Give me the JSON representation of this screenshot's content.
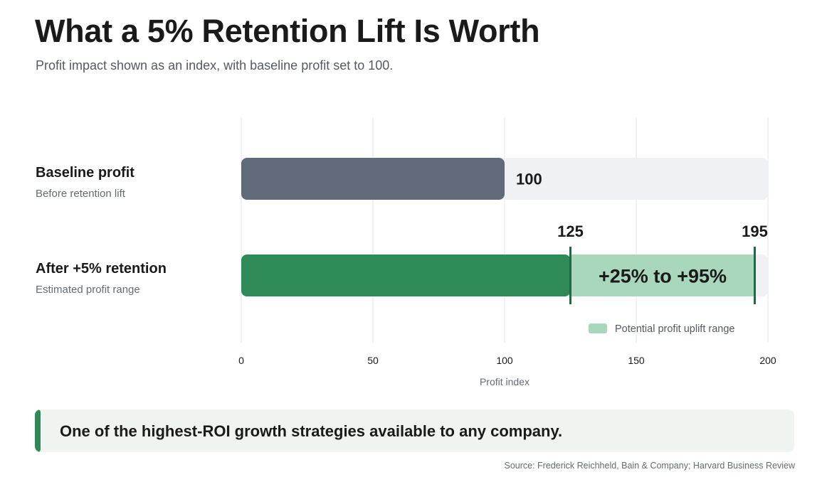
{
  "title": "What a 5% Retention Lift Is Worth",
  "subtitle": "Profit impact shown as an index, with baseline profit set to 100.",
  "rows": [
    {
      "name": "Baseline profit",
      "description": "Before retention lift"
    },
    {
      "name": "After +5% retention",
      "description": "Estimated profit range"
    }
  ],
  "chart_data": {
    "type": "bar",
    "orientation": "horizontal",
    "categories": [
      "Baseline profit",
      "After +5% retention"
    ],
    "baseline_value": 100,
    "after_low": 125,
    "after_high": 195,
    "value_labels": {
      "baseline": "100",
      "low": "125",
      "high": "195"
    },
    "range_label": "+25% to +95%",
    "legend_label": "Potential profit uplift range",
    "legend_position": "bottom-right",
    "xlabel": "Profit index",
    "xlim": [
      0,
      200
    ],
    "xticks": [
      0,
      50,
      100,
      150,
      200
    ],
    "xtick_labels": [
      "0",
      "50",
      "100",
      "150",
      "200"
    ],
    "grid": true,
    "colors": {
      "baseline": "#616a79",
      "after": "#2e8a57",
      "range": "#a8d7bb",
      "range_marker": "#1d6b44",
      "track": "#f0f1f4",
      "grid": "#e3e5e8"
    }
  },
  "callout": {
    "text": "One of the highest-ROI growth strategies available to any company."
  },
  "source": "Source: Frederick Reichheld, Bain & Company; Harvard Business Review"
}
